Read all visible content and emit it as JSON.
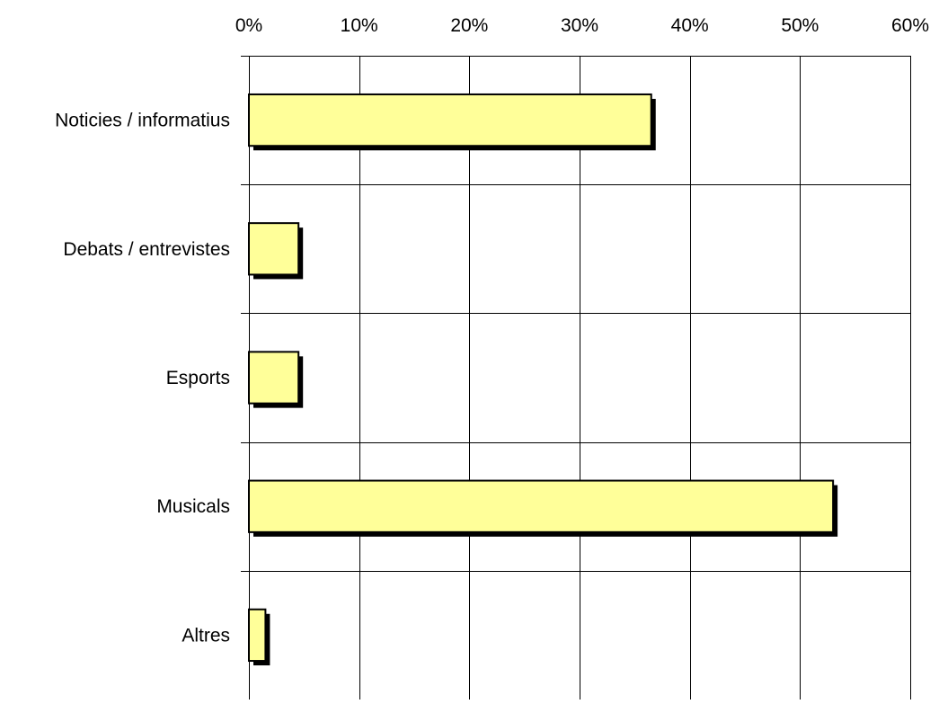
{
  "chart_data": {
    "type": "bar",
    "orientation": "horizontal",
    "categories": [
      "Noticies / informatius",
      "Debats / entrevistes",
      "Esports",
      "Musicals",
      "Altres"
    ],
    "values": [
      36.5,
      4.5,
      4.5,
      53.0,
      1.5
    ],
    "x_ticks": [
      "0%",
      "10%",
      "20%",
      "30%",
      "40%",
      "50%",
      "60%"
    ],
    "xlim": [
      0,
      60
    ],
    "x_axis_position": "top",
    "grid": true,
    "bar_shadow": true,
    "colors": {
      "bar_fill": "#ffff99",
      "bar_stroke": "#000000",
      "shadow": "#000000",
      "grid": "#000000",
      "background": "#ffffff"
    }
  }
}
